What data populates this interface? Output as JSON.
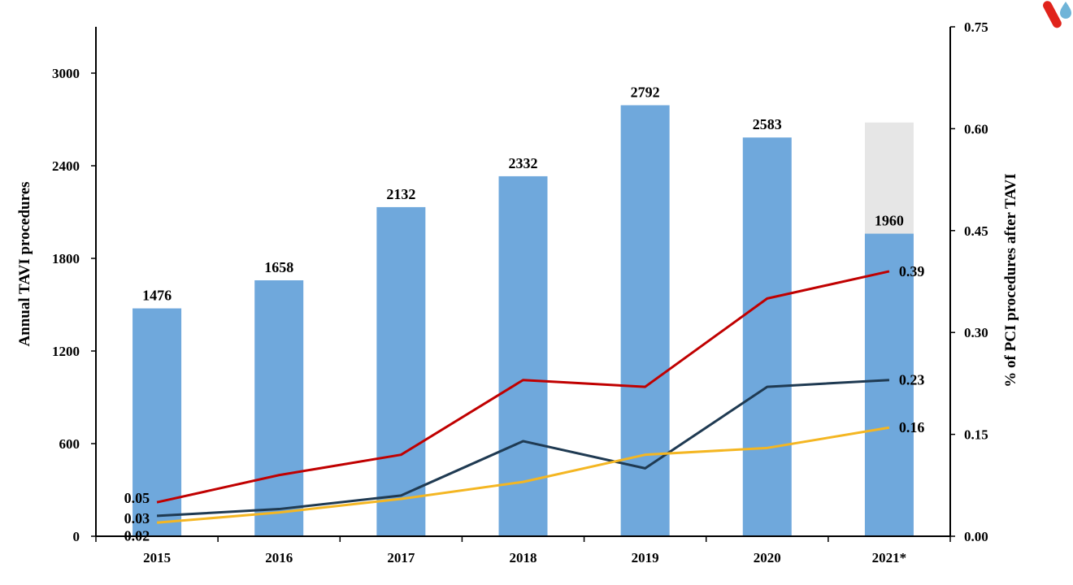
{
  "chart_data": {
    "type": "bar",
    "categories": [
      "2015",
      "2016",
      "2017",
      "2018",
      "2019",
      "2020",
      "2021*"
    ],
    "bar_series": {
      "name": "Annual TAVI procedures",
      "values": [
        1476,
        1658,
        2132,
        2332,
        2792,
        2583,
        1960
      ],
      "labels": [
        "1476",
        "1658",
        "2132",
        "2332",
        "2792",
        "2583",
        "1960"
      ],
      "color": "#6fa8dc"
    },
    "projected_value_2021": 2680,
    "projected_color": "#e6e6e6",
    "line_series": [
      {
        "name": "series-red",
        "color": "#c00000",
        "values": [
          0.05,
          0.09,
          0.12,
          0.23,
          0.22,
          0.35,
          0.39
        ],
        "start_label": "0.05",
        "end_label": "0.39"
      },
      {
        "name": "series-navy",
        "color": "#1f3a52",
        "values": [
          0.03,
          0.04,
          0.06,
          0.14,
          0.1,
          0.22,
          0.23
        ],
        "start_label": "0.03",
        "end_label": "0.23"
      },
      {
        "name": "series-yellow",
        "color": "#f4b622",
        "values": [
          0.02,
          0.035,
          0.055,
          0.08,
          0.12,
          0.13,
          0.16
        ],
        "start_label": "0.02",
        "end_label": "0.16"
      }
    ],
    "y_left": {
      "label": "Annual TAVI procedures",
      "ticks": [
        "0",
        "600",
        "1200",
        "1800",
        "2400",
        "3000"
      ],
      "tick_values": [
        0,
        600,
        1200,
        1800,
        2400,
        3000
      ],
      "ylim": [
        0,
        3300
      ]
    },
    "y_right": {
      "label": "% of PCI procedures after TAVI",
      "ticks": [
        "0.00",
        "0.15",
        "0.30",
        "0.45",
        "0.60",
        "0.75"
      ],
      "tick_values": [
        0,
        0.15,
        0.3,
        0.45,
        0.6,
        0.75
      ],
      "ylim": [
        0,
        0.75
      ]
    },
    "grid": false,
    "legend": "none"
  },
  "logo": {
    "name": "publisher-logo",
    "colors": [
      "#e0231b",
      "#6fb4d8"
    ]
  }
}
